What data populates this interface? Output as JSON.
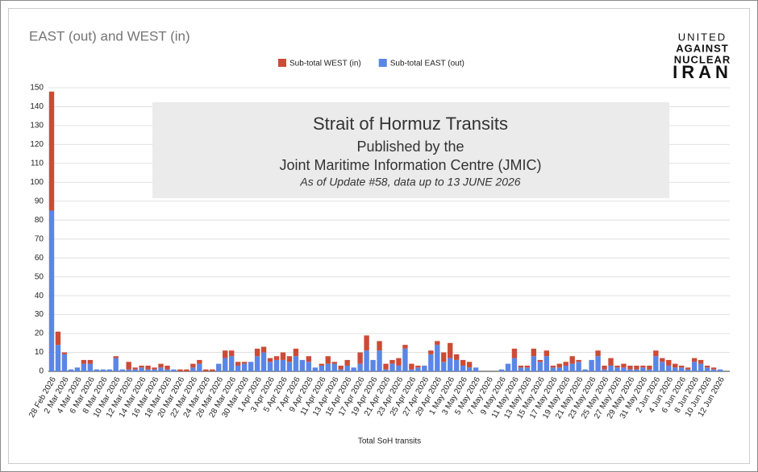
{
  "chart_data": {
    "type": "bar",
    "stacked": true,
    "title": "EAST (out) and WEST (in)",
    "x_label": "Total SoH transits",
    "annotations": [
      "Strait of Hormuz Transits",
      "Published by the",
      "Joint Maritime Information Centre (JMIC)",
      "As of Update #58, data up to 13 JUNE 2026"
    ],
    "logo": [
      "UNITED",
      "AGAINST",
      "NUCLEAR",
      "IRAN"
    ],
    "categories": [
      "28 Feb 2026",
      null,
      "2 Mar 2026",
      null,
      "4 Mar 2026",
      null,
      "6 Mar 2026",
      null,
      "8 Mar 2026",
      null,
      "10 Mar 2026",
      null,
      "12 Mar 2026",
      null,
      "14 Mar 2026",
      null,
      "16 Mar 2026",
      null,
      "18 Mar 2026",
      null,
      "20 Mar 2026",
      null,
      "22 Mar 2026",
      null,
      "24 Mar 2026",
      null,
      "26 Mar 2026",
      null,
      "28 Mar 2026",
      null,
      "30 Mar 2026",
      null,
      "1 Apr 2026",
      null,
      "3 Apr 2026",
      null,
      "5 Apr 2026",
      null,
      "7 Apr 2026",
      null,
      "9 Apr 2026",
      null,
      "11 Apr 2026",
      null,
      "13 Apr 2026",
      null,
      "15 Apr 2026",
      null,
      "17 Apr 2026",
      null,
      "19 Apr 2026",
      null,
      "21 Apr 2026",
      null,
      "23 Apr 2026",
      null,
      "25 Apr 2026",
      null,
      "27 Apr 2026",
      null,
      "29 Apr 2026",
      null,
      "1 May 2026",
      null,
      "3 May 2026",
      null,
      "5 May 2026",
      null,
      "7 May 2026",
      null,
      "9 May 2026",
      null,
      "11 May 2026",
      null,
      "13 May 2026",
      null,
      "15 May 2026",
      null,
      "17 May 2026",
      null,
      "19 May 2026",
      null,
      "21 May 2026",
      null,
      "23 May 2026",
      null,
      "25 May 2026",
      null,
      "27 May 2026",
      null,
      "29 May 2026",
      null,
      "31 May 2026",
      null,
      "2 Jun 2026",
      null,
      "4 Jun 2026",
      null,
      "6 Jun 2026",
      null,
      "8 Jun 2026",
      null,
      "10 Jun 2026",
      null,
      "12 Jun 2026",
      null
    ],
    "series": [
      {
        "name": "Sub-total WEST (in)",
        "color": "#cc4b37",
        "values": [
          63,
          7,
          1,
          0,
          0,
          2,
          2,
          0,
          0,
          0,
          1,
          0,
          4,
          1,
          1,
          2,
          1,
          2,
          2,
          0,
          1,
          1,
          2,
          2,
          1,
          1,
          0,
          4,
          3,
          2,
          1,
          0,
          4,
          3,
          2,
          2,
          4,
          3,
          4,
          0,
          3,
          0,
          1,
          4,
          1,
          2,
          3,
          0,
          6,
          8,
          0,
          5,
          3,
          2,
          4,
          2,
          3,
          1,
          0,
          2,
          2,
          5,
          8,
          3,
          3,
          3,
          0,
          0,
          0,
          0,
          0,
          0,
          5,
          1,
          1,
          4,
          1,
          3,
          1,
          2,
          2,
          4,
          1,
          0,
          0,
          3,
          2,
          4,
          1,
          2,
          2,
          2,
          1,
          2,
          3,
          2,
          3,
          2,
          1,
          1,
          2,
          2,
          1,
          1,
          0,
          0
        ]
      },
      {
        "name": "Sub-total EAST (out)",
        "color": "#5a86e6",
        "values": [
          85,
          14,
          9,
          1,
          2,
          4,
          4,
          1,
          1,
          1,
          7,
          1,
          1,
          1,
          2,
          1,
          1,
          2,
          1,
          1,
          0,
          0,
          2,
          4,
          0,
          0,
          4,
          7,
          8,
          3,
          4,
          5,
          8,
          10,
          5,
          6,
          6,
          5,
          8,
          6,
          5,
          2,
          3,
          4,
          4,
          1,
          3,
          2,
          4,
          11,
          6,
          11,
          1,
          4,
          3,
          12,
          1,
          2,
          3,
          9,
          14,
          5,
          7,
          6,
          3,
          2,
          2,
          0,
          0,
          0,
          1,
          4,
          7,
          2,
          2,
          8,
          5,
          8,
          2,
          2,
          3,
          4,
          5,
          1,
          6,
          8,
          1,
          3,
          2,
          2,
          1,
          1,
          2,
          1,
          8,
          5,
          3,
          2,
          2,
          1,
          5,
          4,
          2,
          1,
          1,
          0
        ]
      }
    ],
    "ylim": [
      0,
      150
    ],
    "yticks": [
      0,
      10,
      20,
      30,
      40,
      50,
      60,
      70,
      80,
      90,
      100,
      110,
      120,
      130,
      140,
      150
    ],
    "grid": true,
    "legend": "top"
  }
}
